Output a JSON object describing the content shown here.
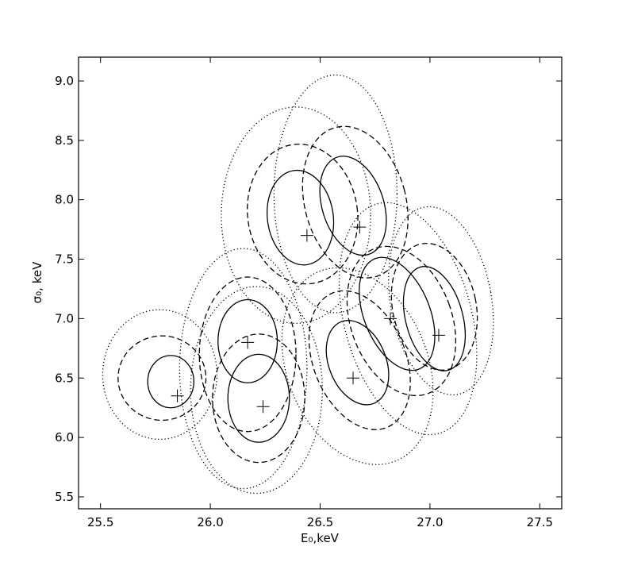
{
  "chart_data": {
    "type": "contour",
    "xlabel": "E₀,keV",
    "ylabel": "σ₀, keV",
    "xlim": [
      25.4,
      27.6
    ],
    "ylim": [
      5.4,
      9.2
    ],
    "xticks": [
      25.5,
      {
        "value": 26,
        "label": "26.0"
      },
      26.5,
      {
        "value": 27,
        "label": "27.0"
      },
      27.5
    ],
    "yticks": [
      5.5,
      {
        "value": 6,
        "label": "6.0"
      },
      6.5,
      {
        "value": 7,
        "label": "7.0"
      },
      7.5,
      {
        "value": 8,
        "label": "8.0"
      },
      8.5,
      {
        "value": 9,
        "label": "9.0"
      }
    ],
    "points": {
      "x": [
        25.85,
        26.17,
        26.24,
        26.44,
        26.68,
        26.65,
        26.82,
        27.04
      ],
      "y": [
        6.35,
        6.8,
        6.26,
        7.7,
        7.77,
        6.5,
        7.0,
        6.86
      ]
    },
    "contours": [
      {
        "style": "solid",
        "x": 25.82,
        "y": 6.47,
        "width": 0.21,
        "height": 0.44,
        "angle": 0
      },
      {
        "style": "dashed",
        "x": 25.78,
        "y": 6.5,
        "width": 0.4,
        "height": 0.71,
        "angle": 0
      },
      {
        "style": "dotted",
        "x": 25.77,
        "y": 6.53,
        "width": 0.52,
        "height": 1.09,
        "angle": 0
      },
      {
        "style": "solid",
        "x": 26.17,
        "y": 6.81,
        "width": 0.27,
        "height": 0.7,
        "angle": 0
      },
      {
        "style": "dashed",
        "x": 26.17,
        "y": 6.7,
        "width": 0.44,
        "height": 1.3,
        "angle": 0
      },
      {
        "style": "dotted",
        "x": 26.15,
        "y": 6.58,
        "width": 0.58,
        "height": 2.02,
        "angle": 0
      },
      {
        "style": "solid",
        "x": 26.22,
        "y": 6.33,
        "width": 0.28,
        "height": 0.74,
        "angle": 0
      },
      {
        "style": "dashed",
        "x": 26.22,
        "y": 6.33,
        "width": 0.42,
        "height": 1.08,
        "angle": 0
      },
      {
        "style": "dotted",
        "x": 26.21,
        "y": 6.4,
        "width": 0.6,
        "height": 1.74,
        "angle": 0
      },
      {
        "style": "solid",
        "x": 26.41,
        "y": 7.85,
        "width": 0.3,
        "height": 0.8,
        "angle": -8
      },
      {
        "style": "dashed",
        "x": 26.42,
        "y": 7.88,
        "width": 0.5,
        "height": 1.18,
        "angle": -8
      },
      {
        "style": "dotted",
        "x": 26.39,
        "y": 7.87,
        "width": 0.68,
        "height": 1.82,
        "angle": 0
      },
      {
        "style": "solid",
        "x": 26.65,
        "y": 7.95,
        "width": 0.28,
        "height": 0.86,
        "angle": -18
      },
      {
        "style": "dashed",
        "x": 26.66,
        "y": 7.98,
        "width": 0.46,
        "height": 1.3,
        "angle": -15
      },
      {
        "style": "dotted",
        "x": 26.57,
        "y": 8.05,
        "width": 0.56,
        "height": 2.0,
        "angle": 0
      },
      {
        "style": "solid",
        "x": 26.67,
        "y": 6.63,
        "width": 0.26,
        "height": 0.74,
        "angle": -22
      },
      {
        "style": "dashed",
        "x": 26.68,
        "y": 6.65,
        "width": 0.42,
        "height": 1.22,
        "angle": -22
      },
      {
        "style": "dotted",
        "x": 26.67,
        "y": 6.6,
        "width": 0.64,
        "height": 1.72,
        "angle": -22
      },
      {
        "style": "solid",
        "x": 26.85,
        "y": 7.04,
        "width": 0.3,
        "height": 1.0,
        "angle": -22
      },
      {
        "style": "dashed",
        "x": 26.87,
        "y": 6.98,
        "width": 0.46,
        "height": 1.3,
        "angle": -20
      },
      {
        "style": "dotted",
        "x": 26.9,
        "y": 7.0,
        "width": 0.58,
        "height": 2.0,
        "angle": -15
      },
      {
        "style": "solid",
        "x": 27.02,
        "y": 7.0,
        "width": 0.26,
        "height": 0.9,
        "angle": -15
      },
      {
        "style": "dashed",
        "x": 27.02,
        "y": 7.1,
        "width": 0.38,
        "height": 1.08,
        "angle": -12
      },
      {
        "style": "dotted",
        "x": 27.05,
        "y": 7.15,
        "width": 0.46,
        "height": 1.6,
        "angle": -10
      }
    ]
  }
}
